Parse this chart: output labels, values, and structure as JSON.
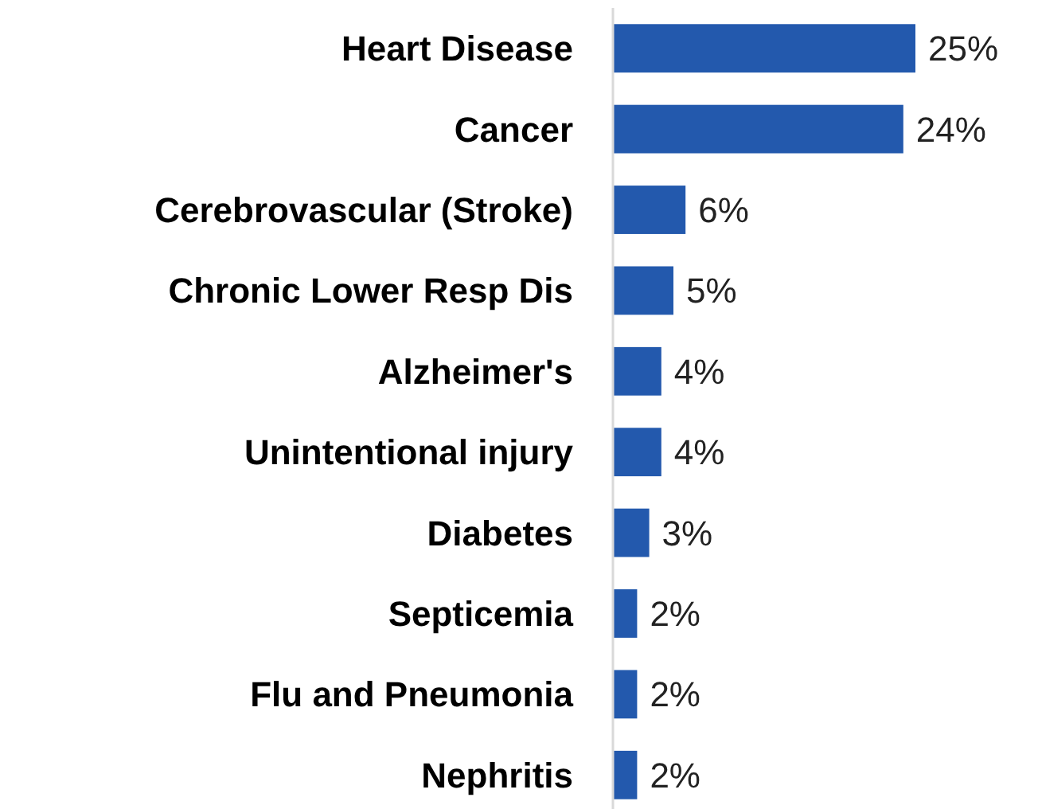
{
  "chart_data": {
    "type": "bar",
    "orientation": "horizontal",
    "categories": [
      "Heart Disease",
      "Cancer",
      "Cerebrovascular (Stroke)",
      "Chronic Lower Resp Dis",
      "Alzheimer's",
      "Unintentional injury",
      "Diabetes",
      "Septicemia",
      "Flu and Pneumonia",
      "Nephritis"
    ],
    "values": [
      25,
      24,
      6,
      5,
      4,
      4,
      3,
      2,
      2,
      2
    ],
    "value_labels": [
      "25%",
      "24%",
      "6%",
      "5%",
      "4%",
      "4%",
      "3%",
      "2%",
      "2%",
      "2%"
    ],
    "color": "#2359ad"
  }
}
